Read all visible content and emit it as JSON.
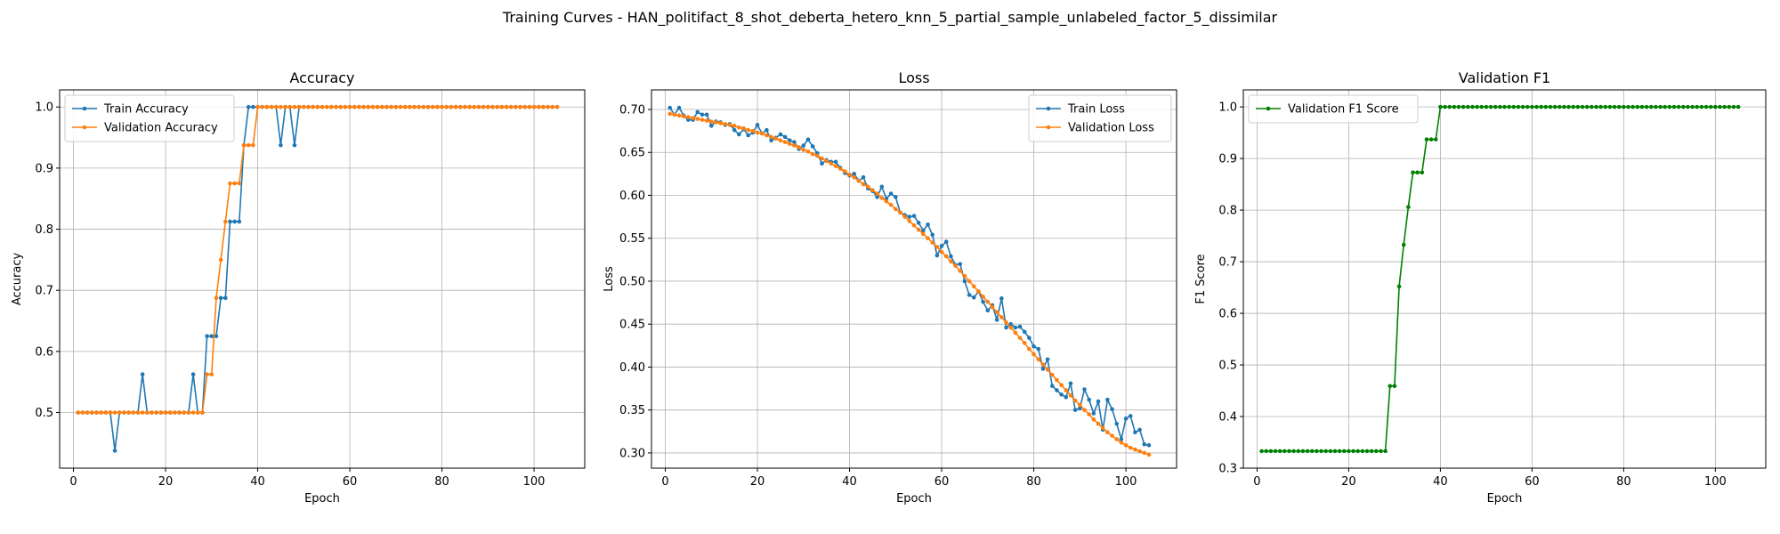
{
  "figure": {
    "suptitle": "Training Curves - HAN_politifact_8_shot_deberta_hetero_knn_5_partial_sample_unlabeled_factor_5_dissimilar"
  },
  "colors": {
    "train": "#1f77b4",
    "validation": "#ff7f0e",
    "f1": "#008000",
    "grid": "#b0b0b0"
  },
  "chart_data": [
    {
      "type": "line",
      "title": "Accuracy",
      "xlabel": "Epoch",
      "ylabel": "Accuracy",
      "xlim": [
        -3,
        111
      ],
      "ylim": [
        0.409,
        1.028
      ],
      "xticks": [
        0,
        20,
        40,
        60,
        80,
        100
      ],
      "yticks": [
        0.5,
        0.6,
        0.7,
        0.8,
        0.9,
        1.0
      ],
      "ytick_labels": [
        "0.5",
        "0.6",
        "0.7",
        "0.8",
        "0.9",
        "1.0"
      ],
      "grid": true,
      "legend_position": "upper-left",
      "x": [
        1,
        2,
        3,
        4,
        5,
        6,
        7,
        8,
        9,
        10,
        11,
        12,
        13,
        14,
        15,
        16,
        17,
        18,
        19,
        20,
        21,
        22,
        23,
        24,
        25,
        26,
        27,
        28,
        29,
        30,
        31,
        32,
        33,
        34,
        35,
        36,
        37,
        38,
        39,
        40,
        41,
        42,
        43,
        44,
        45,
        46,
        47,
        48,
        49,
        50,
        51,
        52,
        53,
        54,
        55,
        56,
        57,
        58,
        59,
        60,
        61,
        62,
        63,
        64,
        65,
        66,
        67,
        68,
        69,
        70,
        71,
        72,
        73,
        74,
        75,
        76,
        77,
        78,
        79,
        80,
        81,
        82,
        83,
        84,
        85,
        86,
        87,
        88,
        89,
        90,
        91,
        92,
        93,
        94,
        95,
        96,
        97,
        98,
        99,
        100,
        101,
        102,
        103,
        104,
        105
      ],
      "series": [
        {
          "name": "Train Accuracy",
          "color": "#1f77b4",
          "values": [
            0.5,
            0.5,
            0.5,
            0.5,
            0.5,
            0.5,
            0.5,
            0.5,
            0.4375,
            0.5,
            0.5,
            0.5,
            0.5,
            0.5,
            0.5625,
            0.5,
            0.5,
            0.5,
            0.5,
            0.5,
            0.5,
            0.5,
            0.5,
            0.5,
            0.5,
            0.5625,
            0.5,
            0.5,
            0.625,
            0.625,
            0.625,
            0.6875,
            0.6875,
            0.8125,
            0.8125,
            0.8125,
            0.9375,
            1.0,
            1.0,
            1.0,
            1.0,
            1.0,
            1.0,
            1.0,
            0.9375,
            1.0,
            1.0,
            0.9375,
            1.0,
            1.0,
            1.0,
            1.0,
            1.0,
            1.0,
            1.0,
            1.0,
            1.0,
            1.0,
            1.0,
            1.0,
            1.0,
            1.0,
            1.0,
            1.0,
            1.0,
            1.0,
            1.0,
            1.0,
            1.0,
            1.0,
            1.0,
            1.0,
            1.0,
            1.0,
            1.0,
            1.0,
            1.0,
            1.0,
            1.0,
            1.0,
            1.0,
            1.0,
            1.0,
            1.0,
            1.0,
            1.0,
            1.0,
            1.0,
            1.0,
            1.0,
            1.0,
            1.0,
            1.0,
            1.0,
            1.0,
            1.0,
            1.0,
            1.0,
            1.0,
            1.0,
            1.0,
            1.0,
            1.0,
            1.0,
            1.0
          ]
        },
        {
          "name": "Validation Accuracy",
          "color": "#ff7f0e",
          "values": [
            0.5,
            0.5,
            0.5,
            0.5,
            0.5,
            0.5,
            0.5,
            0.5,
            0.5,
            0.5,
            0.5,
            0.5,
            0.5,
            0.5,
            0.5,
            0.5,
            0.5,
            0.5,
            0.5,
            0.5,
            0.5,
            0.5,
            0.5,
            0.5,
            0.5,
            0.5,
            0.5,
            0.5,
            0.5625,
            0.5625,
            0.6875,
            0.75,
            0.8125,
            0.875,
            0.875,
            0.875,
            0.9375,
            0.9375,
            0.9375,
            1.0,
            1.0,
            1.0,
            1.0,
            1.0,
            1.0,
            1.0,
            1.0,
            1.0,
            1.0,
            1.0,
            1.0,
            1.0,
            1.0,
            1.0,
            1.0,
            1.0,
            1.0,
            1.0,
            1.0,
            1.0,
            1.0,
            1.0,
            1.0,
            1.0,
            1.0,
            1.0,
            1.0,
            1.0,
            1.0,
            1.0,
            1.0,
            1.0,
            1.0,
            1.0,
            1.0,
            1.0,
            1.0,
            1.0,
            1.0,
            1.0,
            1.0,
            1.0,
            1.0,
            1.0,
            1.0,
            1.0,
            1.0,
            1.0,
            1.0,
            1.0,
            1.0,
            1.0,
            1.0,
            1.0,
            1.0,
            1.0,
            1.0,
            1.0,
            1.0,
            1.0,
            1.0,
            1.0,
            1.0,
            1.0,
            1.0
          ]
        }
      ]
    },
    {
      "type": "line",
      "title": "Loss",
      "xlabel": "Epoch",
      "ylabel": "Loss",
      "xlim": [
        -3,
        111
      ],
      "ylim": [
        0.2823,
        0.7228
      ],
      "xticks": [
        0,
        20,
        40,
        60,
        80,
        100
      ],
      "yticks": [
        0.3,
        0.35,
        0.4,
        0.45,
        0.5,
        0.55,
        0.6,
        0.65,
        0.7
      ],
      "ytick_labels": [
        "0.30",
        "0.35",
        "0.40",
        "0.45",
        "0.50",
        "0.55",
        "0.60",
        "0.65",
        "0.70"
      ],
      "grid": true,
      "legend_position": "upper-right",
      "x": [
        1,
        2,
        3,
        4,
        5,
        6,
        7,
        8,
        9,
        10,
        11,
        12,
        13,
        14,
        15,
        16,
        17,
        18,
        19,
        20,
        21,
        22,
        23,
        24,
        25,
        26,
        27,
        28,
        29,
        30,
        31,
        32,
        33,
        34,
        35,
        36,
        37,
        38,
        39,
        40,
        41,
        42,
        43,
        44,
        45,
        46,
        47,
        48,
        49,
        50,
        51,
        52,
        53,
        54,
        55,
        56,
        57,
        58,
        59,
        60,
        61,
        62,
        63,
        64,
        65,
        66,
        67,
        68,
        69,
        70,
        71,
        72,
        73,
        74,
        75,
        76,
        77,
        78,
        79,
        80,
        81,
        82,
        83,
        84,
        85,
        86,
        87,
        88,
        89,
        90,
        91,
        92,
        93,
        94,
        95,
        96,
        97,
        98,
        99,
        100,
        101,
        102,
        103,
        104,
        105
      ],
      "series": [
        {
          "name": "Train Loss",
          "color": "#1f77b4",
          "values": [
            0.702,
            0.694,
            0.702,
            0.693,
            0.688,
            0.688,
            0.697,
            0.694,
            0.694,
            0.681,
            0.686,
            0.685,
            0.682,
            0.683,
            0.676,
            0.671,
            0.677,
            0.67,
            0.673,
            0.682,
            0.672,
            0.676,
            0.664,
            0.667,
            0.671,
            0.668,
            0.664,
            0.662,
            0.654,
            0.658,
            0.665,
            0.657,
            0.649,
            0.637,
            0.641,
            0.639,
            0.639,
            0.632,
            0.626,
            0.623,
            0.625,
            0.617,
            0.621,
            0.608,
            0.605,
            0.598,
            0.61,
            0.596,
            0.602,
            0.598,
            0.58,
            0.577,
            0.575,
            0.576,
            0.568,
            0.559,
            0.566,
            0.554,
            0.53,
            0.541,
            0.546,
            0.529,
            0.519,
            0.52,
            0.5,
            0.484,
            0.481,
            0.488,
            0.476,
            0.466,
            0.472,
            0.455,
            0.48,
            0.446,
            0.45,
            0.446,
            0.447,
            0.441,
            0.434,
            0.424,
            0.421,
            0.398,
            0.409,
            0.378,
            0.373,
            0.368,
            0.365,
            0.381,
            0.35,
            0.352,
            0.374,
            0.362,
            0.346,
            0.36,
            0.327,
            0.362,
            0.351,
            0.334,
            0.316,
            0.34,
            0.343,
            0.324,
            0.327,
            0.31,
            0.309
          ]
        },
        {
          "name": "Validation Loss",
          "color": "#ff7f0e",
          "values": [
            0.695,
            0.694,
            0.693,
            0.692,
            0.691,
            0.69,
            0.689,
            0.688,
            0.687,
            0.686,
            0.685,
            0.684,
            0.683,
            0.682,
            0.681,
            0.679,
            0.678,
            0.676,
            0.675,
            0.673,
            0.672,
            0.67,
            0.668,
            0.666,
            0.664,
            0.662,
            0.66,
            0.658,
            0.656,
            0.653,
            0.651,
            0.648,
            0.646,
            0.643,
            0.64,
            0.637,
            0.634,
            0.631,
            0.628,
            0.624,
            0.621,
            0.617,
            0.613,
            0.61,
            0.606,
            0.602,
            0.597,
            0.593,
            0.589,
            0.584,
            0.58,
            0.575,
            0.57,
            0.565,
            0.56,
            0.555,
            0.55,
            0.545,
            0.54,
            0.534,
            0.529,
            0.523,
            0.518,
            0.512,
            0.506,
            0.5,
            0.494,
            0.488,
            0.482,
            0.476,
            0.47,
            0.464,
            0.458,
            0.452,
            0.446,
            0.44,
            0.434,
            0.428,
            0.421,
            0.415,
            0.409,
            0.403,
            0.397,
            0.391,
            0.385,
            0.379,
            0.373,
            0.367,
            0.361,
            0.356,
            0.35,
            0.345,
            0.339,
            0.334,
            0.329,
            0.324,
            0.32,
            0.316,
            0.312,
            0.309,
            0.306,
            0.304,
            0.302,
            0.3,
            0.298
          ]
        }
      ]
    },
    {
      "type": "line",
      "title": "Validation F1",
      "xlabel": "Epoch",
      "ylabel": "F1 Score",
      "xlim": [
        -3,
        111
      ],
      "ylim": [
        0.3,
        1.033
      ],
      "xticks": [
        0,
        20,
        40,
        60,
        80,
        100
      ],
      "yticks": [
        0.3,
        0.4,
        0.5,
        0.6,
        0.7,
        0.8,
        0.9,
        1.0
      ],
      "ytick_labels": [
        "0.3",
        "0.4",
        "0.5",
        "0.6",
        "0.7",
        "0.8",
        "0.9",
        "1.0"
      ],
      "grid": true,
      "legend_position": "upper-left",
      "x": [
        1,
        2,
        3,
        4,
        5,
        6,
        7,
        8,
        9,
        10,
        11,
        12,
        13,
        14,
        15,
        16,
        17,
        18,
        19,
        20,
        21,
        22,
        23,
        24,
        25,
        26,
        27,
        28,
        29,
        30,
        31,
        32,
        33,
        34,
        35,
        36,
        37,
        38,
        39,
        40,
        41,
        42,
        43,
        44,
        45,
        46,
        47,
        48,
        49,
        50,
        51,
        52,
        53,
        54,
        55,
        56,
        57,
        58,
        59,
        60,
        61,
        62,
        63,
        64,
        65,
        66,
        67,
        68,
        69,
        70,
        71,
        72,
        73,
        74,
        75,
        76,
        77,
        78,
        79,
        80,
        81,
        82,
        83,
        84,
        85,
        86,
        87,
        88,
        89,
        90,
        91,
        92,
        93,
        94,
        95,
        96,
        97,
        98,
        99,
        100,
        101,
        102,
        103,
        104,
        105
      ],
      "series": [
        {
          "name": "Validation F1 Score",
          "color": "#008000",
          "values": [
            0.333,
            0.333,
            0.333,
            0.333,
            0.333,
            0.333,
            0.333,
            0.333,
            0.333,
            0.333,
            0.333,
            0.333,
            0.333,
            0.333,
            0.333,
            0.333,
            0.333,
            0.333,
            0.333,
            0.333,
            0.333,
            0.333,
            0.333,
            0.333,
            0.333,
            0.333,
            0.333,
            0.333,
            0.459,
            0.459,
            0.652,
            0.733,
            0.806,
            0.873,
            0.873,
            0.873,
            0.937,
            0.937,
            0.937,
            1.0,
            1.0,
            1.0,
            1.0,
            1.0,
            1.0,
            1.0,
            1.0,
            1.0,
            1.0,
            1.0,
            1.0,
            1.0,
            1.0,
            1.0,
            1.0,
            1.0,
            1.0,
            1.0,
            1.0,
            1.0,
            1.0,
            1.0,
            1.0,
            1.0,
            1.0,
            1.0,
            1.0,
            1.0,
            1.0,
            1.0,
            1.0,
            1.0,
            1.0,
            1.0,
            1.0,
            1.0,
            1.0,
            1.0,
            1.0,
            1.0,
            1.0,
            1.0,
            1.0,
            1.0,
            1.0,
            1.0,
            1.0,
            1.0,
            1.0,
            1.0,
            1.0,
            1.0,
            1.0,
            1.0,
            1.0,
            1.0,
            1.0,
            1.0,
            1.0,
            1.0,
            1.0,
            1.0,
            1.0,
            1.0,
            1.0
          ]
        }
      ]
    }
  ]
}
